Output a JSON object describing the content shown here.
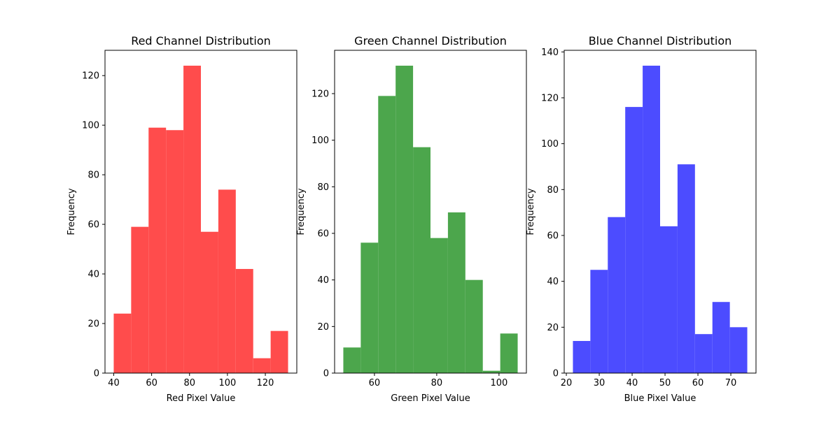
{
  "chart_data": [
    {
      "type": "bar",
      "title": "Red Channel Distribution",
      "xlabel": "Red Pixel Value",
      "ylabel": "Frequency",
      "color": "#ff4c4c",
      "bin_edges": [
        40,
        49.2,
        58.4,
        67.6,
        76.8,
        86,
        95.2,
        104.4,
        113.6,
        122.8,
        132
      ],
      "values": [
        24,
        59,
        99,
        98,
        124,
        57,
        74,
        42,
        6,
        17
      ],
      "xlim": [
        35.4,
        136.6
      ],
      "ylim": [
        0,
        130.2
      ],
      "xticks": [
        40,
        60,
        80,
        100,
        120
      ],
      "yticks": [
        0,
        20,
        40,
        60,
        80,
        100,
        120
      ],
      "grid": false
    },
    {
      "type": "bar",
      "title": "Green Channel Distribution",
      "xlabel": "Green Pixel Value",
      "ylabel": "Frequency",
      "color": "#4ca64c",
      "bin_edges": [
        50,
        55.6,
        61.2,
        66.8,
        72.4,
        78,
        83.6,
        89.2,
        94.8,
        100.4,
        106
      ],
      "values": [
        11,
        56,
        119,
        132,
        97,
        58,
        69,
        40,
        1,
        17
      ],
      "xlim": [
        47.2,
        108.8
      ],
      "ylim": [
        0,
        138.6
      ],
      "xticks": [
        60,
        80,
        100
      ],
      "yticks": [
        0,
        20,
        40,
        60,
        80,
        100,
        120
      ],
      "grid": false
    },
    {
      "type": "bar",
      "title": "Blue Channel Distribution",
      "xlabel": "Blue Pixel Value",
      "ylabel": "Frequency",
      "color": "#4c4cff",
      "bin_edges": [
        22,
        27.3,
        32.6,
        37.9,
        43.2,
        48.5,
        53.8,
        59.1,
        64.4,
        69.7,
        75
      ],
      "values": [
        14,
        45,
        68,
        116,
        134,
        64,
        91,
        17,
        31,
        20
      ],
      "xlim": [
        19.35,
        77.65
      ],
      "ylim": [
        0,
        140.7
      ],
      "xticks": [
        20,
        30,
        40,
        50,
        60,
        70
      ],
      "yticks": [
        0,
        20,
        40,
        60,
        80,
        100,
        120,
        140
      ],
      "grid": false
    }
  ]
}
